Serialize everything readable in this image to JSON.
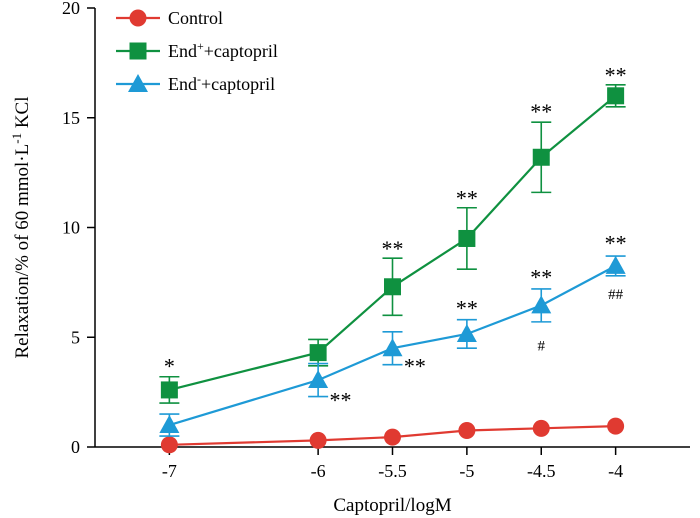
{
  "chart_data": {
    "type": "line",
    "xlabel": "Captopril/logM",
    "ylabel": {
      "main": "Relaxation/% of 60 mmol·L",
      "sup": "-1",
      "tail": " KCl"
    },
    "x": [
      -7,
      -6,
      -5.5,
      -5,
      -4.5,
      -4
    ],
    "x_tick_labels": [
      "-7",
      "-6",
      "-5.5",
      "-5",
      "-4.5",
      "-4"
    ],
    "xlim": [
      -7.5,
      -3.5
    ],
    "ylim": [
      0,
      20
    ],
    "y_ticks": [
      0,
      5,
      10,
      15,
      20
    ],
    "y_tick_labels": [
      "0",
      "5",
      "10",
      "15",
      "20"
    ],
    "legend_position": "top-left",
    "series": [
      {
        "name": "Control",
        "legend": {
          "base": "Control",
          "sup": "",
          "rest": ""
        },
        "color": "#e03a31",
        "marker": "circle",
        "values": [
          0.1,
          0.3,
          0.45,
          0.75,
          0.85,
          0.95
        ],
        "errors": [
          0,
          0,
          0,
          0,
          0,
          0
        ]
      },
      {
        "name": "End+ +captopril",
        "legend": {
          "base": "End",
          "sup": "+",
          "rest": "+captopril"
        },
        "color": "#0f9140",
        "marker": "square",
        "values": [
          2.6,
          4.3,
          7.3,
          9.5,
          13.2,
          16.0
        ],
        "errors": [
          0.6,
          0.6,
          1.3,
          1.4,
          1.6,
          0.5
        ]
      },
      {
        "name": "End- +captopril",
        "legend": {
          "base": "End",
          "sup": "-",
          "rest": "+captopril"
        },
        "color": "#1e9ad6",
        "marker": "triangle",
        "values": [
          1.0,
          3.05,
          4.5,
          5.15,
          6.45,
          8.25
        ],
        "errors": [
          0.5,
          0.75,
          0.75,
          0.65,
          0.75,
          0.45
        ]
      }
    ],
    "annotations": [
      {
        "text": "*",
        "x": -7,
        "y": 3.35,
        "size": "large"
      },
      {
        "text": "**",
        "x": -5.5,
        "y": 8.7,
        "size": "large"
      },
      {
        "text": "**",
        "x": -5,
        "y": 11.0,
        "size": "large"
      },
      {
        "text": "**",
        "x": -4.5,
        "y": 14.95,
        "size": "large"
      },
      {
        "text": "**",
        "x": -4,
        "y": 16.6,
        "size": "large"
      },
      {
        "text": "**",
        "x": -5.85,
        "y": 1.8,
        "size": "large"
      },
      {
        "text": "**",
        "x": -5.35,
        "y": 3.35,
        "size": "large"
      },
      {
        "text": "**",
        "x": -5,
        "y": 6.0,
        "size": "large"
      },
      {
        "text": "**",
        "x": -4.5,
        "y": 7.4,
        "size": "large"
      },
      {
        "text": "**",
        "x": -4,
        "y": 8.95,
        "size": "large"
      },
      {
        "text": "#",
        "x": -4.5,
        "y": 4.4,
        "size": "small"
      },
      {
        "text": "##",
        "x": -4,
        "y": 6.75,
        "size": "small"
      }
    ]
  }
}
